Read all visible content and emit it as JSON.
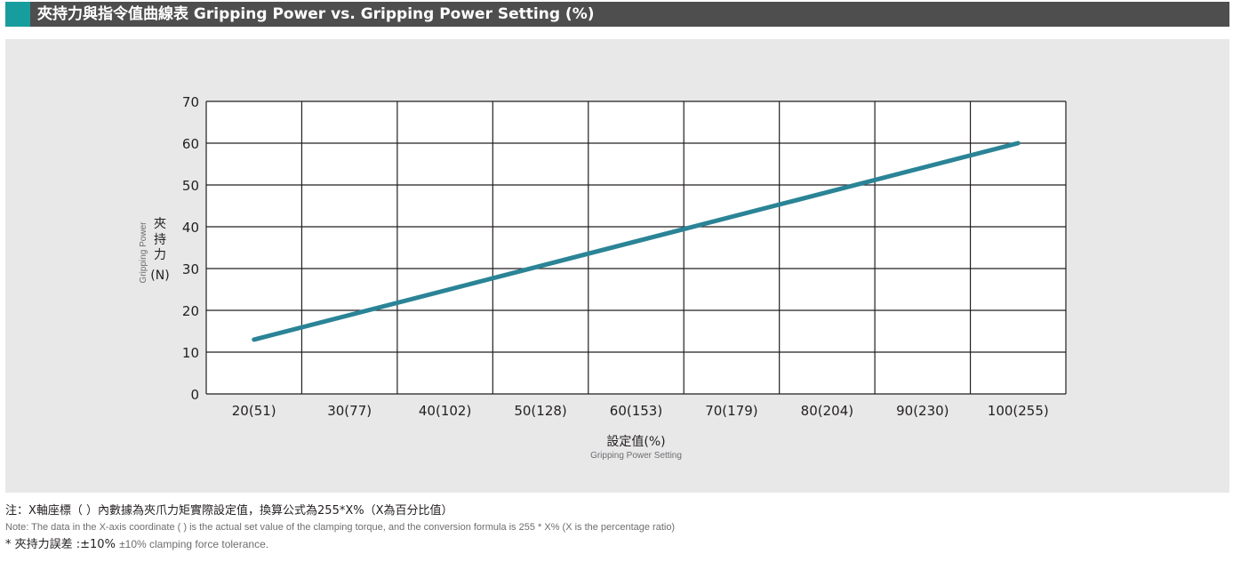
{
  "header": {
    "title": "夾持力與指令值曲線表 Gripping Power vs. Gripping Power Setting (%)",
    "accent_color": "#179d9d",
    "bar_color": "#4e4e4e"
  },
  "chart_data": {
    "type": "line",
    "title": "",
    "xlabel": "設定值(%)",
    "xlabel_en": "Gripping Power Setting",
    "ylabel": "夾持力(N)",
    "ylabel_chars": [
      "夾",
      "持",
      "力",
      "(N)"
    ],
    "ylabel_en": "Gripping Power",
    "categories": [
      "20(51)",
      "30(77)",
      "40(102)",
      "50(128)",
      "60(153)",
      "70(179)",
      "80(204)",
      "90(230)",
      "100(255)"
    ],
    "x": [
      20,
      30,
      40,
      50,
      60,
      70,
      80,
      90,
      100
    ],
    "xlim": [
      15,
      105
    ],
    "ylim": [
      0,
      70
    ],
    "yticks": [
      0,
      10,
      20,
      30,
      40,
      50,
      60,
      70
    ],
    "series": [
      {
        "name": "",
        "x": [
          20,
          100
        ],
        "y": [
          13,
          60
        ],
        "color": "#2a8496"
      }
    ],
    "grid": true,
    "legend": "none"
  },
  "notes": {
    "zh": "注：X軸座標（ ）內數據為夾爪力矩實際設定值，換算公式為255*X%（X為百分比值）",
    "en": "Note: The data in the X-axis coordinate ( ) is the actual set value of the clamping torque, and the conversion formula is 255 * X% (X is the percentage ratio)",
    "tolerance_zh": "* 夾持力誤差 :±10%",
    "tolerance_en": "±10% clamping force tolerance."
  }
}
